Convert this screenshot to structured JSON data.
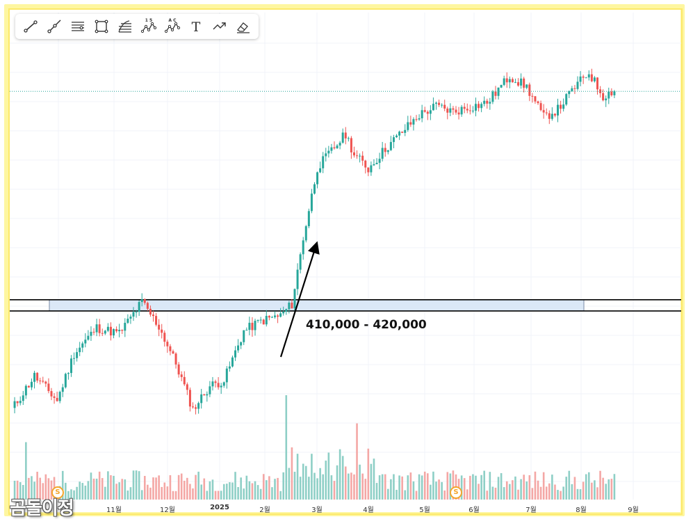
{
  "watermark": "곰돌이정",
  "toolbar": {
    "tools": [
      {
        "name": "trend-line-tool-icon"
      },
      {
        "name": "ray-line-tool-icon"
      },
      {
        "name": "horizontal-lines-tool-icon"
      },
      {
        "name": "rectangle-tool-icon"
      },
      {
        "name": "fib-retracement-tool-icon"
      },
      {
        "name": "wave-15-tool-icon",
        "label": "1 5"
      },
      {
        "name": "wave-ac-tool-icon",
        "label": "A C"
      },
      {
        "name": "text-tool-icon",
        "label": "T"
      },
      {
        "name": "forecast-arrow-tool-icon"
      },
      {
        "name": "eraser-tool-icon"
      }
    ]
  },
  "annotations": {
    "zone_label": "410,000 - 420,000",
    "dividend_badge": "S"
  },
  "colors": {
    "up": "#26a69a",
    "down": "#ef5350",
    "up_volume": "#8ecfc6",
    "down_volume": "#f4a7a5",
    "zone_fill": "#dbe8f7",
    "zone_border": "#000000",
    "price_line": "#26a69a",
    "frame_outer": "#fef6a0",
    "frame_inner": "#fde96a"
  },
  "chart_data": {
    "type": "candlestick",
    "x_ticks": [
      "11월",
      "12월",
      "2025",
      "2월",
      "3월",
      "4월",
      "5월",
      "6월",
      "7월",
      "8월",
      "9월"
    ],
    "support_zone": [
      410000,
      420000
    ],
    "y_range": [
      290000,
      640000
    ],
    "anchors": [
      {
        "i": 0,
        "p": 322000
      },
      {
        "i": 8,
        "p": 352000
      },
      {
        "i": 16,
        "p": 330000
      },
      {
        "i": 22,
        "p": 372000
      },
      {
        "i": 30,
        "p": 395000
      },
      {
        "i": 38,
        "p": 390000
      },
      {
        "i": 46,
        "p": 418000
      },
      {
        "i": 52,
        "p": 396000
      },
      {
        "i": 58,
        "p": 363000
      },
      {
        "i": 64,
        "p": 322000
      },
      {
        "i": 70,
        "p": 343000
      },
      {
        "i": 75,
        "p": 348000
      },
      {
        "i": 82,
        "p": 392000
      },
      {
        "i": 88,
        "p": 401000
      },
      {
        "i": 95,
        "p": 406000
      },
      {
        "i": 99,
        "p": 416000
      },
      {
        "i": 103,
        "p": 475000
      },
      {
        "i": 108,
        "p": 538000
      },
      {
        "i": 113,
        "p": 553000
      },
      {
        "i": 118,
        "p": 568000
      },
      {
        "i": 121,
        "p": 550000
      },
      {
        "i": 126,
        "p": 537000
      },
      {
        "i": 132,
        "p": 555000
      },
      {
        "i": 138,
        "p": 570000
      },
      {
        "i": 144,
        "p": 585000
      },
      {
        "i": 150,
        "p": 593000
      },
      {
        "i": 156,
        "p": 588000
      },
      {
        "i": 162,
        "p": 592000
      },
      {
        "i": 168,
        "p": 596000
      },
      {
        "i": 176,
        "p": 620000
      },
      {
        "i": 182,
        "p": 610000
      },
      {
        "i": 188,
        "p": 583000
      },
      {
        "i": 193,
        "p": 590000
      },
      {
        "i": 199,
        "p": 610000
      },
      {
        "i": 204,
        "p": 623000
      },
      {
        "i": 209,
        "p": 602000
      },
      {
        "i": 212,
        "p": 606000
      }
    ],
    "volume_spikes": [
      {
        "i": 5,
        "v": 0.55
      },
      {
        "i": 97,
        "v": 1.0
      },
      {
        "i": 99,
        "v": 0.5
      },
      {
        "i": 112,
        "v": 0.45
      },
      {
        "i": 122,
        "v": 0.73
      }
    ]
  }
}
